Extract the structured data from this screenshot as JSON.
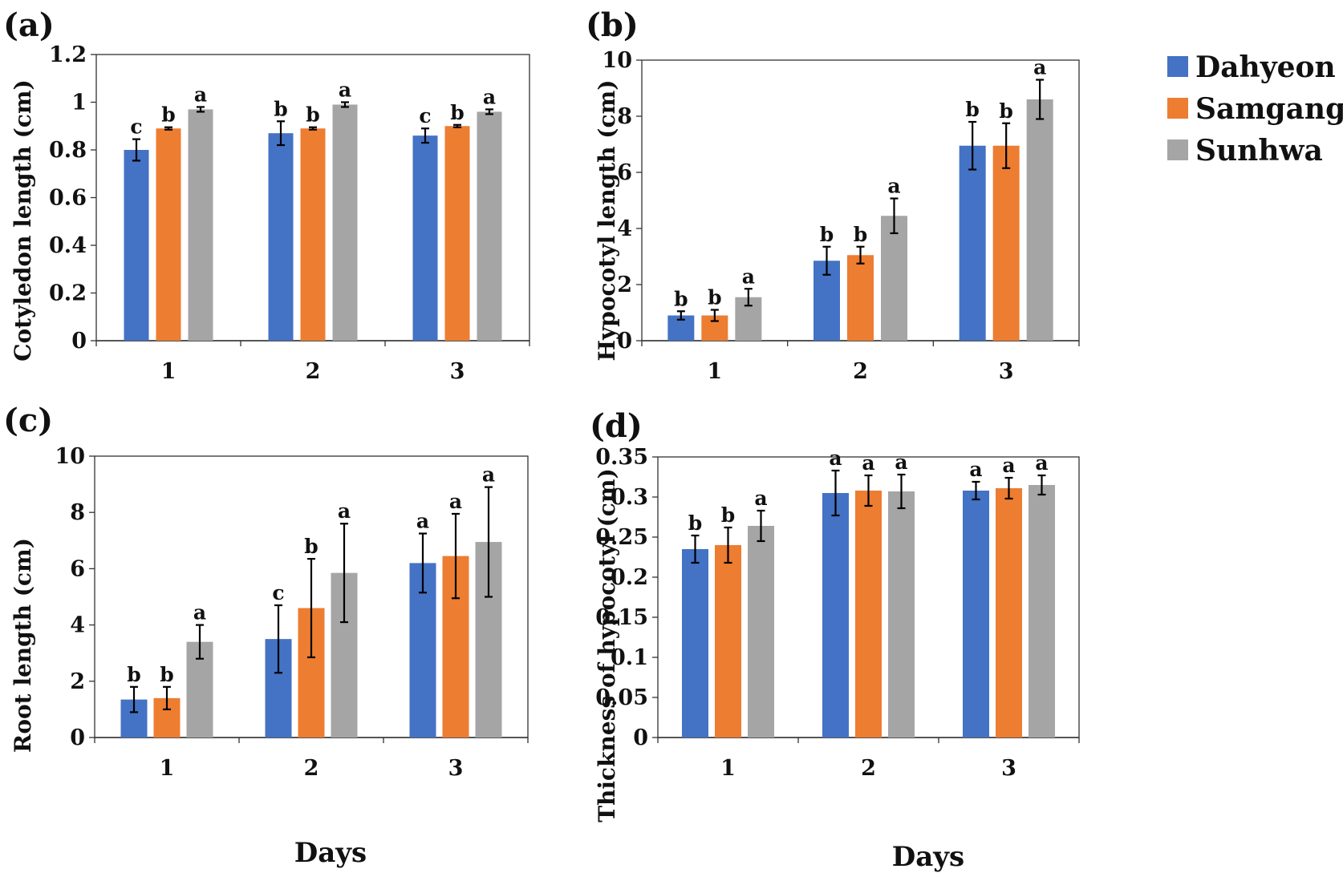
{
  "legend": {
    "position": "top-right",
    "items": [
      {
        "name": "Dahyeon",
        "color": "#4472C4"
      },
      {
        "name": "Samgang",
        "color": "#ED7D31"
      },
      {
        "name": "Sunhwa",
        "color": "#A5A5A5"
      }
    ]
  },
  "chart_data": [
    {
      "panel": "(a)",
      "type": "bar",
      "xlabel": "",
      "ylabel": "Cotyledon length (cm)",
      "categories": [
        "1",
        "2",
        "3"
      ],
      "ylim": [
        0,
        1.2
      ],
      "yticks": [
        "0",
        "0.2",
        "0.4",
        "0.6",
        "0.8",
        "1",
        "1.2"
      ],
      "series": [
        {
          "name": "Dahyeon",
          "values": [
            0.8,
            0.87,
            0.86
          ],
          "errors": [
            0.045,
            0.05,
            0.03
          ],
          "letters": [
            "c",
            "b",
            "c"
          ]
        },
        {
          "name": "Samgang",
          "values": [
            0.89,
            0.89,
            0.9
          ],
          "errors": [
            0.005,
            0.005,
            0.005
          ],
          "letters": [
            "b",
            "b",
            "b"
          ]
        },
        {
          "name": "Sunhwa",
          "values": [
            0.97,
            0.99,
            0.96
          ],
          "errors": [
            0.01,
            0.01,
            0.01
          ],
          "letters": [
            "a",
            "a",
            "a"
          ]
        }
      ]
    },
    {
      "panel": "(b)",
      "type": "bar",
      "xlabel": "",
      "ylabel": "Hypocotyl length (cm)",
      "categories": [
        "1",
        "2",
        "3"
      ],
      "ylim": [
        0,
        10
      ],
      "yticks": [
        "0",
        "2",
        "4",
        "6",
        "8",
        "10"
      ],
      "series": [
        {
          "name": "Dahyeon",
          "values": [
            0.9,
            2.85,
            6.95
          ],
          "errors": [
            0.15,
            0.5,
            0.85
          ],
          "letters": [
            "b",
            "b",
            "b"
          ]
        },
        {
          "name": "Samgang",
          "values": [
            0.9,
            3.05,
            6.95
          ],
          "errors": [
            0.2,
            0.3,
            0.8
          ],
          "letters": [
            "b",
            "b",
            "b"
          ]
        },
        {
          "name": "Sunhwa",
          "values": [
            1.55,
            4.45,
            8.6
          ],
          "errors": [
            0.3,
            0.62,
            0.7
          ],
          "letters": [
            "a",
            "a",
            "a"
          ]
        }
      ]
    },
    {
      "panel": "(c)",
      "type": "bar",
      "xlabel": "Days",
      "ylabel": "Root length (cm)",
      "categories": [
        "1",
        "2",
        "3"
      ],
      "ylim": [
        0,
        10
      ],
      "yticks": [
        "0",
        "2",
        "4",
        "6",
        "8",
        "10"
      ],
      "series": [
        {
          "name": "Dahyeon",
          "values": [
            1.35,
            3.5,
            6.2
          ],
          "errors": [
            0.45,
            1.2,
            1.05
          ],
          "letters": [
            "b",
            "c",
            "a"
          ]
        },
        {
          "name": "Samgang",
          "values": [
            1.4,
            4.6,
            6.45
          ],
          "errors": [
            0.4,
            1.75,
            1.5
          ],
          "letters": [
            "b",
            "b",
            "a"
          ]
        },
        {
          "name": "Sunhwa",
          "values": [
            3.4,
            5.85,
            6.95
          ],
          "errors": [
            0.6,
            1.75,
            1.95
          ],
          "letters": [
            "a",
            "a",
            "a"
          ]
        }
      ]
    },
    {
      "panel": "(d)",
      "type": "bar",
      "xlabel": "Days",
      "ylabel": "Thickness of hypocotyl (cm)",
      "categories": [
        "1",
        "2",
        "3"
      ],
      "ylim": [
        0,
        0.35
      ],
      "yticks": [
        "0",
        "0.05",
        "0.1",
        "0.15",
        "0.2",
        "0.25",
        "0.3",
        "0.35"
      ],
      "series": [
        {
          "name": "Dahyeon",
          "values": [
            0.235,
            0.305,
            0.308
          ],
          "errors": [
            0.017,
            0.028,
            0.011
          ],
          "letters": [
            "b",
            "a",
            "a"
          ]
        },
        {
          "name": "Samgang",
          "values": [
            0.24,
            0.308,
            0.311
          ],
          "errors": [
            0.022,
            0.019,
            0.013
          ],
          "letters": [
            "b",
            "a",
            "a"
          ]
        },
        {
          "name": "Sunhwa",
          "values": [
            0.264,
            0.307,
            0.315
          ],
          "errors": [
            0.019,
            0.021,
            0.012
          ],
          "letters": [
            "a",
            "a",
            "a"
          ]
        }
      ]
    }
  ]
}
